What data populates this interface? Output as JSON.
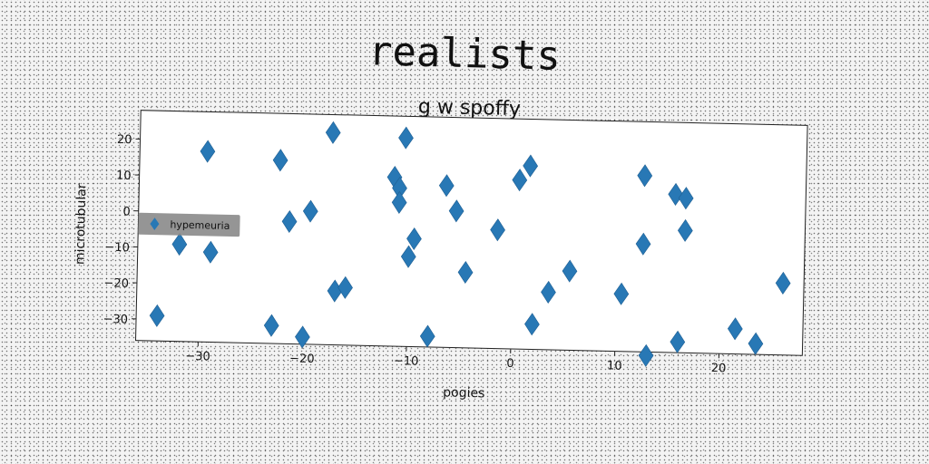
{
  "headline": "realists",
  "chart_data": {
    "type": "scatter",
    "title": "g w spoffy",
    "xlabel": "pogies",
    "ylabel": "microtubular",
    "xlim": [
      -36,
      28
    ],
    "ylim": [
      -36,
      28
    ],
    "xticks": [
      -30,
      -20,
      -10,
      0,
      10,
      20
    ],
    "yticks": [
      -30,
      -20,
      -10,
      0,
      10,
      20
    ],
    "legend": {
      "location": "center-left"
    },
    "series": [
      {
        "name": "hypemeuria",
        "color": "#2878b5",
        "marker": "diamond",
        "points": [
          {
            "x": -34,
            "y": -29
          },
          {
            "x": -32,
            "y": -9
          },
          {
            "x": -29.5,
            "y": 17
          },
          {
            "x": -29,
            "y": -11
          },
          {
            "x": -23,
            "y": -31
          },
          {
            "x": -22.5,
            "y": 15
          },
          {
            "x": -21.5,
            "y": -2
          },
          {
            "x": -20,
            "y": -34
          },
          {
            "x": -19.5,
            "y": 1
          },
          {
            "x": -17.5,
            "y": 23
          },
          {
            "x": -17,
            "y": -21
          },
          {
            "x": -16,
            "y": -20
          },
          {
            "x": -11.5,
            "y": 11
          },
          {
            "x": -11,
            "y": 8
          },
          {
            "x": -11,
            "y": 4
          },
          {
            "x": -10.5,
            "y": 22
          },
          {
            "x": -10,
            "y": -11
          },
          {
            "x": -9.5,
            "y": -6
          },
          {
            "x": -8,
            "y": -33
          },
          {
            "x": -6.5,
            "y": 9
          },
          {
            "x": -5.5,
            "y": 2
          },
          {
            "x": -4.5,
            "y": -15
          },
          {
            "x": -1.5,
            "y": -3
          },
          {
            "x": 0.5,
            "y": 11
          },
          {
            "x": 1.5,
            "y": 15
          },
          {
            "x": 2,
            "y": -29
          },
          {
            "x": 3.5,
            "y": -20
          },
          {
            "x": 5.5,
            "y": -14
          },
          {
            "x": 10.5,
            "y": -20
          },
          {
            "x": 12.5,
            "y": -6
          },
          {
            "x": 12.5,
            "y": 13
          },
          {
            "x": 13,
            "y": -37
          },
          {
            "x": 15.5,
            "y": 8
          },
          {
            "x": 16,
            "y": -33
          },
          {
            "x": 16.5,
            "y": 7
          },
          {
            "x": 16.5,
            "y": -2
          },
          {
            "x": 21.5,
            "y": -29
          },
          {
            "x": 23.5,
            "y": -33
          },
          {
            "x": 26,
            "y": -16
          }
        ]
      }
    ]
  }
}
